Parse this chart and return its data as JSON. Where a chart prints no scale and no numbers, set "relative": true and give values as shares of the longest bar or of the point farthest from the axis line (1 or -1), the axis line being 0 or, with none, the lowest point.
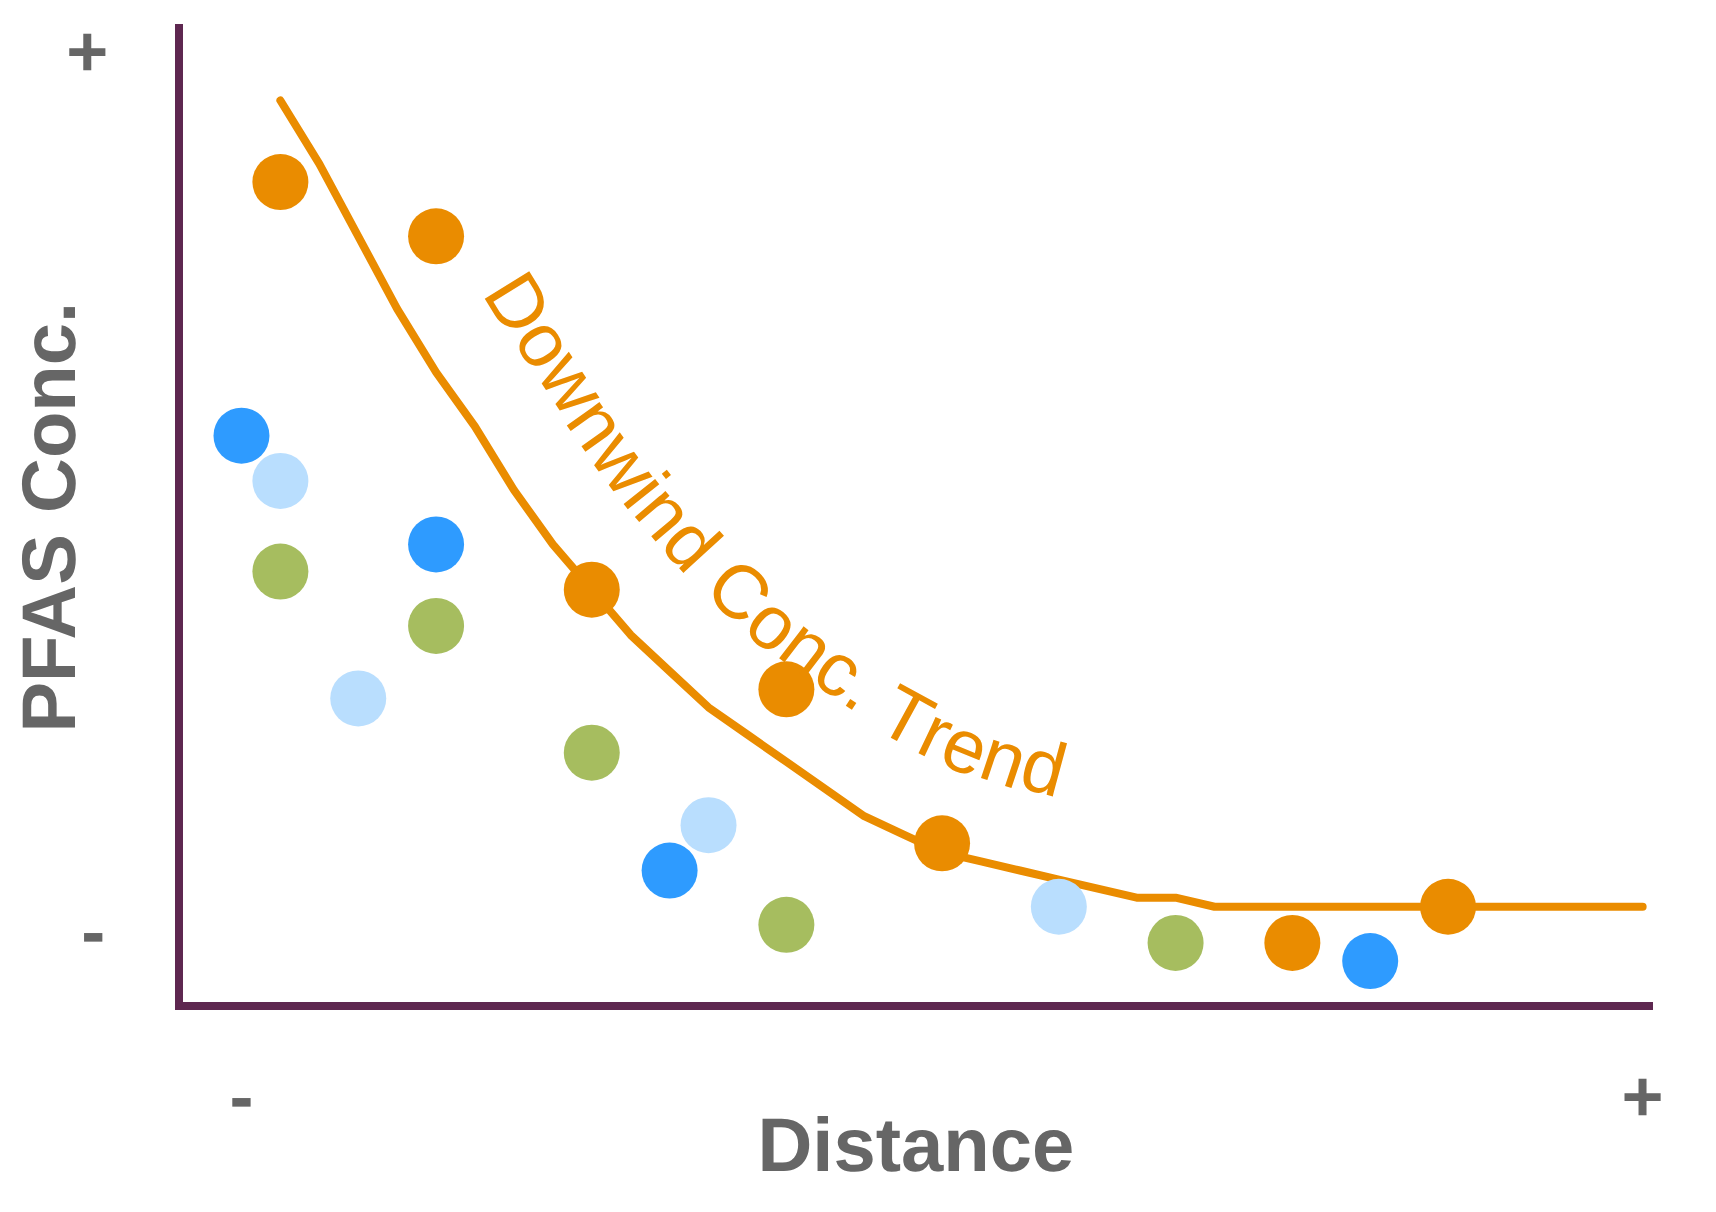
{
  "chart_data": {
    "type": "scatter",
    "relative": true,
    "xlabel": "Distance",
    "ylabel": "PFAS Conc.",
    "marker": "circle",
    "legend": false,
    "annotations": [
      "+",
      "-"
    ],
    "categories": [
      "-",
      null,
      null,
      null,
      null,
      null,
      null,
      null,
      null,
      null,
      null,
      null,
      null,
      null,
      null,
      null,
      null,
      null,
      null,
      null,
      null,
      null,
      null,
      null,
      null,
      null,
      null,
      null,
      null,
      null,
      null,
      null,
      null,
      null,
      null,
      null,
      "+"
    ],
    "series": [
      {
        "color": "#ea8c00",
        "values": [
          null,
          0.91,
          null,
          null,
          null,
          0.85,
          null,
          null,
          null,
          0.46,
          null,
          null,
          null,
          null,
          0.35,
          null,
          null,
          null,
          0.18,
          null,
          null,
          null,
          null,
          null,
          null,
          null,
          null,
          0.07,
          null,
          null,
          null,
          0.11,
          null,
          null,
          null,
          null,
          null
        ]
      },
      {
        "color": "#2e9bff",
        "values": [
          0.63,
          null,
          null,
          null,
          null,
          0.51,
          null,
          null,
          null,
          null,
          null,
          0.15,
          null,
          null,
          null,
          null,
          null,
          null,
          null,
          null,
          null,
          null,
          null,
          null,
          null,
          null,
          null,
          null,
          null,
          0.05,
          null,
          null,
          null,
          null,
          null,
          null,
          null
        ]
      },
      {
        "color": "#b9defe",
        "values": [
          null,
          0.58,
          null,
          0.34,
          null,
          null,
          null,
          null,
          null,
          null,
          null,
          null,
          0.2,
          null,
          null,
          null,
          null,
          null,
          null,
          null,
          null,
          0.11,
          null,
          null,
          null,
          null,
          null,
          null,
          null,
          null,
          null,
          null,
          null,
          null,
          null,
          null,
          null
        ]
      },
      {
        "color": "#a6bd5f",
        "values": [
          null,
          0.48,
          null,
          null,
          null,
          0.42,
          null,
          null,
          null,
          0.28,
          null,
          null,
          null,
          null,
          0.09,
          null,
          null,
          null,
          null,
          null,
          null,
          null,
          null,
          null,
          0.07,
          null,
          null,
          null,
          null,
          null,
          null,
          null,
          null,
          null,
          null,
          null,
          null
        ]
      },
      {
        "type": "line",
        "name": "Downwind Conc. Trend",
        "color": "#ea8c00",
        "marker": "none",
        "values": [
          null,
          1.0,
          0.93,
          0.85,
          0.77,
          0.7,
          0.64,
          0.57,
          0.51,
          0.46,
          0.41,
          0.37,
          0.33,
          0.3,
          0.27,
          0.24,
          0.21,
          0.19,
          0.17,
          0.16,
          0.15,
          0.14,
          0.13,
          0.12,
          0.12,
          0.11,
          0.11,
          0.11,
          0.11,
          0.11,
          0.11,
          0.11,
          0.11,
          0.11,
          0.11,
          0.11,
          0.11
        ]
      }
    ]
  }
}
